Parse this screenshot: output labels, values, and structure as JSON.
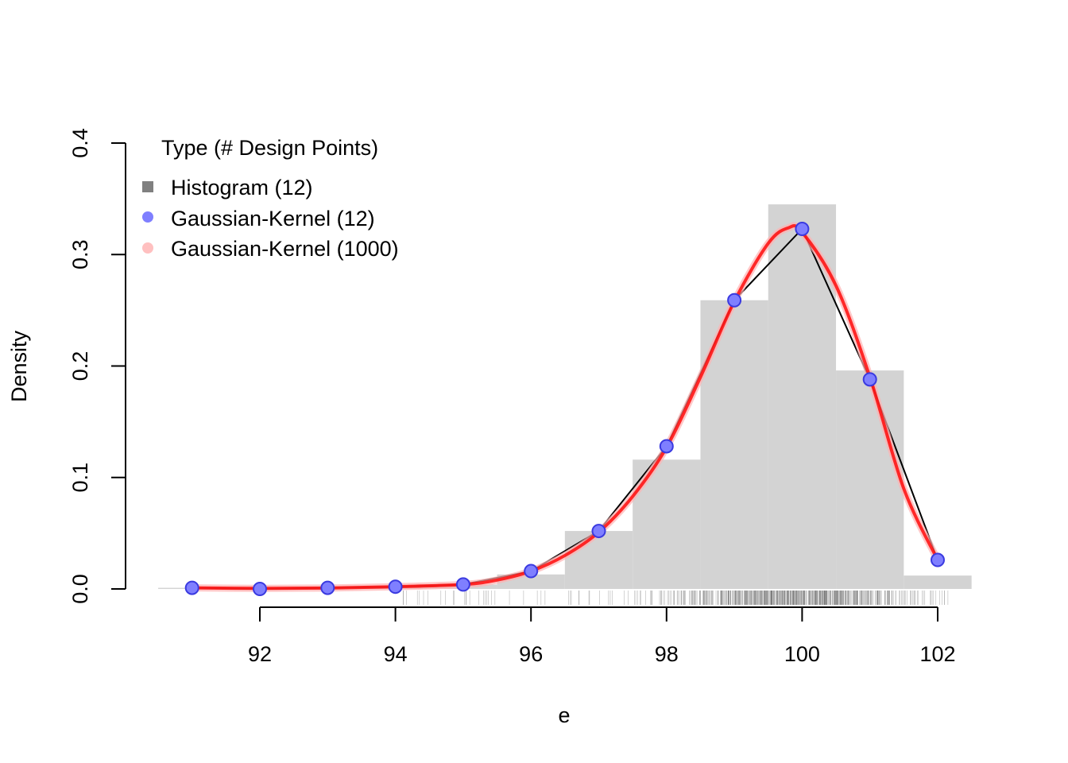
{
  "chart_data": {
    "type": "bar",
    "xlabel": "e",
    "ylabel": "Density",
    "xlim": [
      90.5,
      102.5
    ],
    "ylim": [
      0,
      0.4
    ],
    "x_ticks": [
      "92",
      "94",
      "96",
      "98",
      "100",
      "102"
    ],
    "y_ticks": [
      "0.0",
      "0.1",
      "0.2",
      "0.3",
      "0.4"
    ],
    "grid": false,
    "legend": {
      "position": "top-left",
      "title": "Type (# Design Points)",
      "entries": [
        "Histogram (12)",
        "Gaussian-Kernel (12)",
        "Gaussian-Kernel (1000)"
      ]
    },
    "series": [
      {
        "name": "Histogram (12)",
        "type": "histogram",
        "color": "#d3d3d3",
        "bins": [
          {
            "x0": 90.5,
            "x1": 91.5,
            "density": 0.001
          },
          {
            "x0": 91.5,
            "x1": 92.5,
            "density": 0.0005
          },
          {
            "x0": 92.5,
            "x1": 93.5,
            "density": 0.001
          },
          {
            "x0": 93.5,
            "x1": 94.5,
            "density": 0.002
          },
          {
            "x0": 94.5,
            "x1": 95.5,
            "density": 0.004
          },
          {
            "x0": 95.5,
            "x1": 96.5,
            "density": 0.013
          },
          {
            "x0": 96.5,
            "x1": 97.5,
            "density": 0.052
          },
          {
            "x0": 97.5,
            "x1": 98.5,
            "density": 0.116
          },
          {
            "x0": 98.5,
            "x1": 99.5,
            "density": 0.259
          },
          {
            "x0": 99.5,
            "x1": 100.5,
            "density": 0.345
          },
          {
            "x0": 100.5,
            "x1": 101.5,
            "density": 0.196
          },
          {
            "x0": 101.5,
            "x1": 102.5,
            "density": 0.012
          }
        ]
      },
      {
        "name": "Gaussian-Kernel (12)",
        "type": "line+points",
        "color": "#7f7fff",
        "line_color": "#000000",
        "x": [
          91,
          92,
          93,
          94,
          95,
          96,
          97,
          98,
          99,
          100,
          101,
          102
        ],
        "y": [
          0.001,
          0.0,
          0.001,
          0.002,
          0.004,
          0.016,
          0.052,
          0.128,
          0.259,
          0.323,
          0.188,
          0.026
        ]
      },
      {
        "name": "Gaussian-Kernel (1000)",
        "type": "smooth-line",
        "color": "#ff0000",
        "x": [
          91,
          92,
          93,
          94,
          95,
          95.5,
          96,
          96.5,
          97,
          97.5,
          98,
          98.5,
          99,
          99.5,
          99.8,
          100,
          100.5,
          101,
          101.5,
          102
        ],
        "y": [
          0.001,
          0.0005,
          0.0008,
          0.002,
          0.004,
          0.008,
          0.016,
          0.03,
          0.051,
          0.083,
          0.127,
          0.19,
          0.258,
          0.31,
          0.324,
          0.32,
          0.272,
          0.19,
          0.09,
          0.026
        ]
      }
    ]
  }
}
